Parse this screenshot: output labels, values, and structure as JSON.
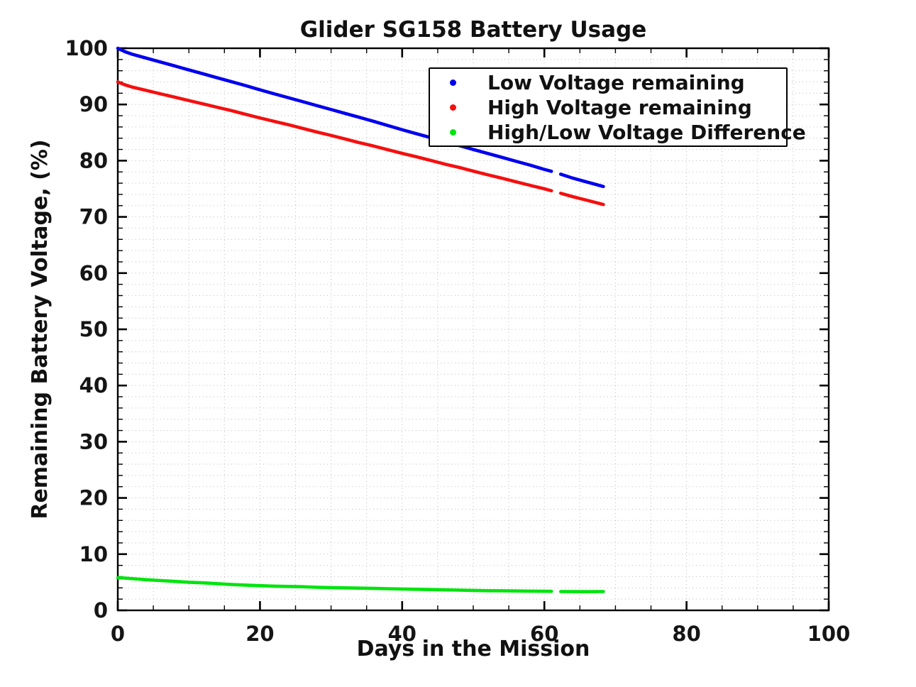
{
  "chart_data": {
    "type": "line",
    "title": "Glider SG158 Battery Usage",
    "xlabel": "Days in the Mission",
    "ylabel": "Remaining Battery Voltage, (%)",
    "xlim": [
      0,
      100
    ],
    "ylim": [
      0,
      100
    ],
    "x_ticks": [
      0,
      20,
      40,
      60,
      80,
      100
    ],
    "y_ticks": [
      0,
      10,
      20,
      30,
      40,
      50,
      60,
      70,
      80,
      90,
      100
    ],
    "x_minor_step": 5,
    "y_minor_step": 2,
    "grid": "dotted gray minor+major grid on",
    "gap_days": [
      61,
      62.3
    ],
    "colors": {
      "background": "#ffffff",
      "axis": "#000000",
      "grid": "#c3c3c3",
      "blue_series": "#0000ee",
      "red_series": "#f50f0f",
      "green_series": "#00e40e"
    },
    "legend": {
      "position": "upper right inside",
      "entries": [
        {
          "label": "Low Voltage remaining",
          "color": "#0000ee",
          "marker": "dot"
        },
        {
          "label": "High Voltage remaining",
          "color": "#f50f0f",
          "marker": "dot"
        },
        {
          "label": "High/Low Voltage Difference",
          "color": "#00e40e",
          "marker": "dot"
        }
      ]
    },
    "series": [
      {
        "name": "Low Voltage remaining",
        "color": "#0000ee",
        "segments": [
          [
            [
              0,
              100
            ],
            [
              0.5,
              99.7
            ],
            [
              1,
              99.4
            ],
            [
              2,
              98.95
            ],
            [
              3,
              98.6
            ],
            [
              4,
              98.25
            ],
            [
              6,
              97.55
            ],
            [
              8,
              96.85
            ],
            [
              10,
              96.15
            ],
            [
              12,
              95.45
            ],
            [
              14,
              94.75
            ],
            [
              16,
              94.05
            ],
            [
              18,
              93.35
            ],
            [
              20,
              92.6
            ],
            [
              22,
              91.9
            ],
            [
              24,
              91.2
            ],
            [
              26,
              90.5
            ],
            [
              28,
              89.8
            ],
            [
              30,
              89.1
            ],
            [
              32,
              88.4
            ],
            [
              34,
              87.7
            ],
            [
              36,
              87
            ],
            [
              38,
              86.25
            ],
            [
              40,
              85.5
            ],
            [
              42,
              84.8
            ],
            [
              44,
              84.1
            ],
            [
              46,
              83.4
            ],
            [
              48,
              82.7
            ],
            [
              50,
              82
            ],
            [
              52,
              81.3
            ],
            [
              54,
              80.6
            ],
            [
              56,
              79.9
            ],
            [
              58,
              79.2
            ],
            [
              60,
              78.45
            ],
            [
              61,
              78.1
            ]
          ],
          [
            [
              62.3,
              77.6
            ],
            [
              64,
              76.9
            ],
            [
              66,
              76.2
            ],
            [
              68,
              75.5
            ],
            [
              68.3,
              75.4
            ]
          ]
        ]
      },
      {
        "name": "High Voltage remaining",
        "color": "#f50f0f",
        "segments": [
          [
            [
              0,
              94
            ],
            [
              0.5,
              93.75
            ],
            [
              1,
              93.5
            ],
            [
              2,
              93.1
            ],
            [
              3,
              92.8
            ],
            [
              4,
              92.5
            ],
            [
              6,
              91.9
            ],
            [
              8,
              91.3
            ],
            [
              10,
              90.7
            ],
            [
              12,
              90.1
            ],
            [
              14,
              89.5
            ],
            [
              16,
              88.9
            ],
            [
              18,
              88.25
            ],
            [
              20,
              87.6
            ],
            [
              22,
              87
            ],
            [
              24,
              86.4
            ],
            [
              26,
              85.75
            ],
            [
              28,
              85.1
            ],
            [
              30,
              84.5
            ],
            [
              32,
              83.85
            ],
            [
              34,
              83.2
            ],
            [
              36,
              82.6
            ],
            [
              38,
              81.95
            ],
            [
              40,
              81.3
            ],
            [
              42,
              80.7
            ],
            [
              44,
              80.05
            ],
            [
              46,
              79.4
            ],
            [
              48,
              78.8
            ],
            [
              50,
              78.15
            ],
            [
              52,
              77.5
            ],
            [
              54,
              76.9
            ],
            [
              56,
              76.25
            ],
            [
              58,
              75.6
            ],
            [
              60,
              75
            ],
            [
              61,
              74.65
            ]
          ],
          [
            [
              62.3,
              74.2
            ],
            [
              64,
              73.6
            ],
            [
              66,
              72.95
            ],
            [
              68,
              72.3
            ],
            [
              68.3,
              72.2
            ]
          ]
        ]
      },
      {
        "name": "High/Low Voltage Difference",
        "color": "#00e40e",
        "segments": [
          [
            [
              0,
              5.8
            ],
            [
              1,
              5.75
            ],
            [
              2,
              5.65
            ],
            [
              3,
              5.55
            ],
            [
              4,
              5.45
            ],
            [
              6,
              5.3
            ],
            [
              8,
              5.15
            ],
            [
              10,
              5
            ],
            [
              12,
              4.9
            ],
            [
              14,
              4.75
            ],
            [
              16,
              4.6
            ],
            [
              18,
              4.5
            ],
            [
              20,
              4.4
            ],
            [
              22,
              4.3
            ],
            [
              24,
              4.25
            ],
            [
              26,
              4.2
            ],
            [
              28,
              4.1
            ],
            [
              30,
              4.05
            ],
            [
              32,
              4
            ],
            [
              34,
              3.95
            ],
            [
              36,
              3.9
            ],
            [
              38,
              3.85
            ],
            [
              40,
              3.8
            ],
            [
              42,
              3.75
            ],
            [
              44,
              3.7
            ],
            [
              46,
              3.65
            ],
            [
              48,
              3.6
            ],
            [
              50,
              3.55
            ],
            [
              52,
              3.5
            ],
            [
              54,
              3.48
            ],
            [
              56,
              3.45
            ],
            [
              58,
              3.42
            ],
            [
              60,
              3.4
            ],
            [
              61,
              3.38
            ]
          ],
          [
            [
              62.3,
              3.35
            ],
            [
              64,
              3.33
            ],
            [
              66,
              3.32
            ],
            [
              68,
              3.34
            ],
            [
              68.3,
              3.35
            ]
          ]
        ]
      }
    ]
  }
}
